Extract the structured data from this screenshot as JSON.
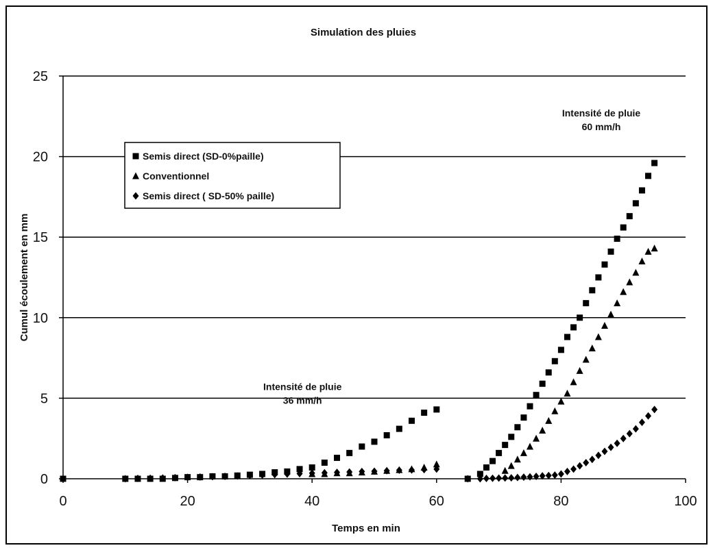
{
  "chart_data": {
    "type": "scatter",
    "title": "Simulation des pluies",
    "xlabel": "Temps en min",
    "ylabel": "Cumul écoulement en mm",
    "xlim": [
      0,
      100
    ],
    "ylim": [
      0,
      25
    ],
    "xticks": [
      "0",
      "20",
      "40",
      "60",
      "80",
      "100"
    ],
    "yticks": [
      "0",
      "5",
      "10",
      "15",
      "20",
      "25"
    ],
    "grid": "horizontal",
    "legend_position": "top-left",
    "annotations": [
      {
        "line1": "Intensité de pluie",
        "line2": "36 mm/h",
        "at": [
          40,
          5.5
        ]
      },
      {
        "line1": "Intensité de pluie",
        "line2": "60 mm/h",
        "at": [
          88,
          22.5
        ]
      }
    ],
    "series": [
      {
        "name": "Semis direct  (SD-0%paille)",
        "marker": "square",
        "color": "#000000",
        "x": [
          0,
          10,
          12,
          14,
          16,
          18,
          20,
          22,
          24,
          26,
          28,
          30,
          32,
          34,
          36,
          38,
          40,
          42,
          44,
          46,
          48,
          50,
          52,
          54,
          56,
          58,
          60,
          65,
          67,
          68,
          69,
          70,
          71,
          72,
          73,
          74,
          75,
          76,
          77,
          78,
          79,
          80,
          81,
          82,
          83,
          84,
          85,
          86,
          87,
          88,
          89,
          90,
          91,
          92,
          93,
          94,
          95
        ],
        "y": [
          0,
          0,
          0,
          0,
          0,
          0.05,
          0.1,
          0.1,
          0.15,
          0.15,
          0.2,
          0.25,
          0.3,
          0.4,
          0.45,
          0.6,
          0.7,
          1.0,
          1.3,
          1.6,
          2.0,
          2.3,
          2.7,
          3.1,
          3.6,
          4.1,
          4.3,
          0,
          0.3,
          0.7,
          1.1,
          1.6,
          2.1,
          2.6,
          3.2,
          3.8,
          4.5,
          5.2,
          5.9,
          6.6,
          7.3,
          8.0,
          8.8,
          9.4,
          10.0,
          10.9,
          11.7,
          12.5,
          13.3,
          14.1,
          14.9,
          15.6,
          16.3,
          17.1,
          17.9,
          18.8,
          19.6
        ]
      },
      {
        "name": "Conventionnel",
        "marker": "triangle",
        "color": "#000000",
        "x": [
          40,
          42,
          44,
          46,
          48,
          50,
          52,
          54,
          56,
          58,
          60,
          71,
          72,
          73,
          74,
          75,
          76,
          77,
          78,
          79,
          80,
          81,
          82,
          83,
          84,
          85,
          86,
          87,
          88,
          89,
          90,
          91,
          92,
          93,
          94,
          95
        ],
        "y": [
          0.3,
          0.3,
          0.35,
          0.35,
          0.4,
          0.45,
          0.5,
          0.55,
          0.6,
          0.7,
          0.9,
          0.5,
          0.8,
          1.2,
          1.6,
          2.0,
          2.5,
          3.0,
          3.6,
          4.2,
          4.8,
          5.3,
          6.0,
          6.7,
          7.4,
          8.1,
          8.8,
          9.5,
          10.2,
          10.9,
          11.6,
          12.2,
          12.8,
          13.5,
          14.1,
          14.3
        ]
      },
      {
        "name": "Semis direct ( SD-50% paille)",
        "marker": "diamond",
        "color": "#000000",
        "x": [
          0,
          10,
          12,
          14,
          16,
          18,
          20,
          22,
          24,
          26,
          28,
          30,
          32,
          34,
          36,
          38,
          40,
          42,
          44,
          46,
          48,
          50,
          52,
          54,
          56,
          58,
          60,
          65,
          67,
          68,
          69,
          70,
          71,
          72,
          73,
          74,
          75,
          76,
          77,
          78,
          79,
          80,
          81,
          82,
          83,
          84,
          85,
          86,
          87,
          88,
          89,
          90,
          91,
          92,
          93,
          94,
          95
        ],
        "y": [
          0,
          0,
          0.02,
          0.03,
          0.05,
          0.07,
          0.09,
          0.11,
          0.13,
          0.15,
          0.17,
          0.2,
          0.23,
          0.26,
          0.29,
          0.32,
          0.35,
          0.37,
          0.4,
          0.42,
          0.45,
          0.47,
          0.5,
          0.53,
          0.55,
          0.57,
          0.6,
          0,
          0,
          0.02,
          0.03,
          0.04,
          0.05,
          0.06,
          0.08,
          0.1,
          0.12,
          0.15,
          0.18,
          0.2,
          0.23,
          0.3,
          0.45,
          0.6,
          0.8,
          1.0,
          1.2,
          1.45,
          1.7,
          1.95,
          2.2,
          2.5,
          2.8,
          3.1,
          3.5,
          3.9,
          4.3
        ]
      }
    ]
  }
}
